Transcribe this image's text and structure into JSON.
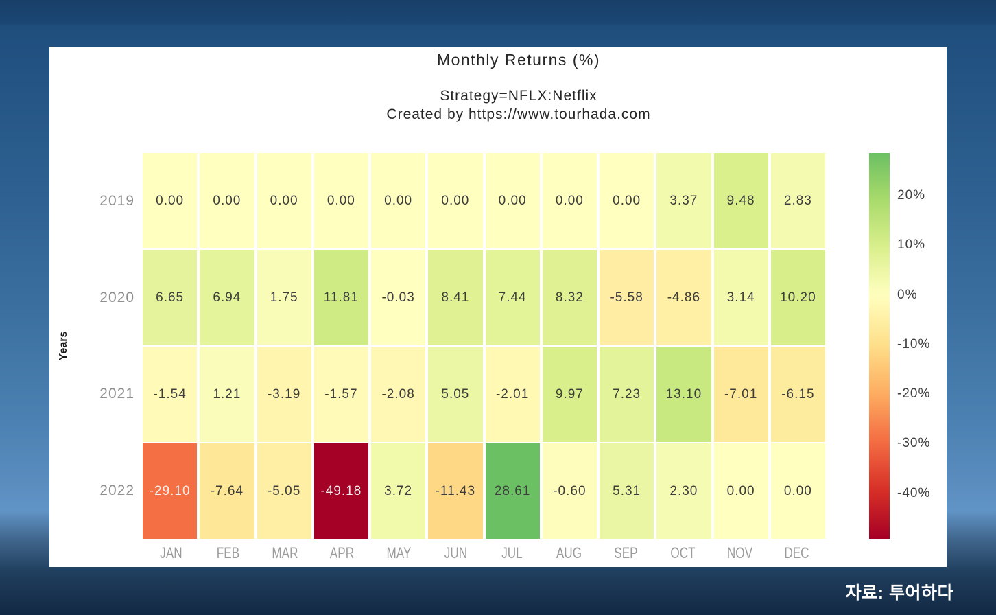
{
  "header": {
    "title": "Monthly Returns (%)",
    "subtitle1": "Strategy=NFLX:Netflix",
    "subtitle2": "Created by https://www.tourhada.com"
  },
  "footer": {
    "source_note": "자료: 투어하다"
  },
  "chart_data": {
    "type": "heatmap",
    "title": "Monthly Returns (%)",
    "xlabel": "",
    "ylabel": "Years",
    "x_categories": [
      "JAN",
      "FEB",
      "MAR",
      "APR",
      "MAY",
      "JUN",
      "JUL",
      "AUG",
      "SEP",
      "OCT",
      "NOV",
      "DEC"
    ],
    "y_categories": [
      "2019",
      "2020",
      "2021",
      "2022"
    ],
    "rows": [
      [
        "0.00",
        "0.00",
        "0.00",
        "0.00",
        "0.00",
        "0.00",
        "0.00",
        "0.00",
        "0.00",
        "3.37",
        "9.48",
        "2.83"
      ],
      [
        "6.65",
        "6.94",
        "1.75",
        "11.81",
        "-0.03",
        "8.41",
        "7.44",
        "8.32",
        "-5.58",
        "-4.86",
        "3.14",
        "10.20"
      ],
      [
        "-1.54",
        "1.21",
        "-3.19",
        "-1.57",
        "-2.08",
        "5.05",
        "-2.01",
        "9.97",
        "7.23",
        "13.10",
        "-7.01",
        "-6.15"
      ],
      [
        "-29.10",
        "-7.64",
        "-5.05",
        "-49.18",
        "3.72",
        "-11.43",
        "28.61",
        "-0.60",
        "5.31",
        "2.30",
        "0.00",
        "0.00"
      ]
    ],
    "colorscale": {
      "name": "RdYlGn",
      "domain": [
        -49.18,
        49.18
      ],
      "stops": [
        "#a50026",
        "#d73027",
        "#f46d43",
        "#fdae61",
        "#fee08b",
        "#ffffbf",
        "#d9ef8b",
        "#a6d96a",
        "#66bd63",
        "#1a9850",
        "#006837"
      ]
    },
    "colorbar": {
      "range": [
        -49.18,
        28.61
      ],
      "ticks": [
        {
          "label": "20%",
          "value": 20
        },
        {
          "label": "10%",
          "value": 10
        },
        {
          "label": "0%",
          "value": 0
        },
        {
          "label": "-10%",
          "value": -10
        },
        {
          "label": "-20%",
          "value": -20
        },
        {
          "label": "-30%",
          "value": -30
        },
        {
          "label": "-40%",
          "value": -40
        }
      ]
    },
    "legend_position": "right",
    "grid": "off",
    "background": {
      "page_gradient_top": "#1f4e7d",
      "page_gradient_light": "#6194c6",
      "page_gradient_bottom": "#122843",
      "panel": "#ffffff"
    }
  }
}
